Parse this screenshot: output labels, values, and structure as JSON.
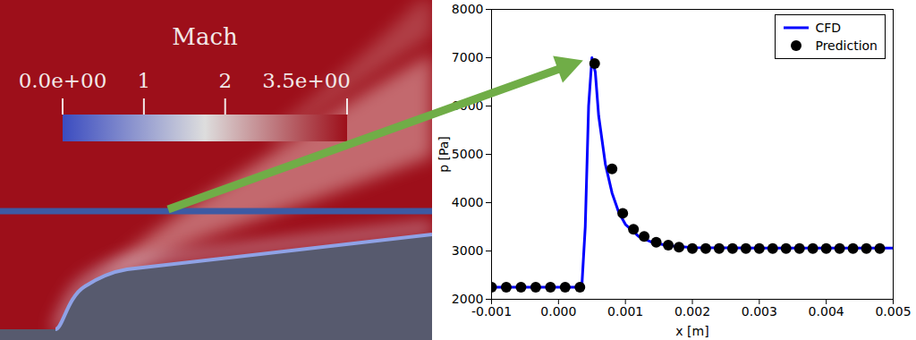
{
  "chart_data": [
    {
      "type": "contour",
      "colorbar": {
        "title": "Mach",
        "range": [
          0,
          3.5
        ],
        "ticks": [
          {
            "value": 0,
            "label": "0.0e+00"
          },
          1,
          2,
          {
            "value": 3.5,
            "label": "3.5e+00"
          }
        ]
      }
    },
    {
      "type": "line",
      "xlabel": "x [m]",
      "ylabel": "p [Pa]",
      "xlim": [
        -0.001,
        0.005
      ],
      "ylim": [
        2000,
        8000
      ],
      "xticks": [
        -0.001,
        {
          "value": 0,
          "label": "0.000"
        },
        0.001,
        0.002,
        0.003,
        0.004,
        0.005
      ],
      "yticks": [
        2000,
        3000,
        4000,
        5000,
        6000,
        7000,
        8000
      ],
      "legend": "upper right",
      "series": [
        {
          "name": "CFD",
          "type": "line",
          "color": "#0000ff",
          "line_style": "solid",
          "x": [
            -0.001,
            0.0,
            0.0003,
            0.00035,
            0.0004,
            0.00045,
            0.0005,
            0.00055,
            0.0006,
            0.0007,
            0.0008,
            0.0009,
            0.001,
            0.0012,
            0.0014,
            0.0016,
            0.0018,
            0.002,
            0.003,
            0.004,
            0.005
          ],
          "values": [
            2250,
            2250,
            2250,
            2300,
            3500,
            6000,
            7000,
            6700,
            5800,
            4800,
            4200,
            3800,
            3550,
            3300,
            3180,
            3120,
            3090,
            3070,
            3060,
            3060,
            3060
          ]
        },
        {
          "name": "Prediction",
          "type": "scatter",
          "color": "#000000",
          "marker": "circle",
          "x": [
            -0.001,
            -0.00078,
            -0.00056,
            -0.00034,
            -0.00012,
            0.0001,
            0.00032,
            0.00054,
            0.0008,
            0.00096,
            0.00112,
            0.00128,
            0.00146,
            0.00164,
            0.0018,
            0.002,
            0.0022,
            0.0024,
            0.0026,
            0.0028,
            0.003,
            0.0032,
            0.0034,
            0.0036,
            0.0038,
            0.004,
            0.0042,
            0.0044,
            0.0046,
            0.0048
          ],
          "values": [
            2250,
            2250,
            2250,
            2250,
            2250,
            2250,
            2250,
            6880,
            4700,
            3780,
            3450,
            3300,
            3180,
            3120,
            3080,
            3050,
            3050,
            3050,
            3050,
            3050,
            3050,
            3050,
            3050,
            3050,
            3050,
            3050,
            3050,
            3050,
            3050,
            3050
          ]
        }
      ]
    }
  ]
}
